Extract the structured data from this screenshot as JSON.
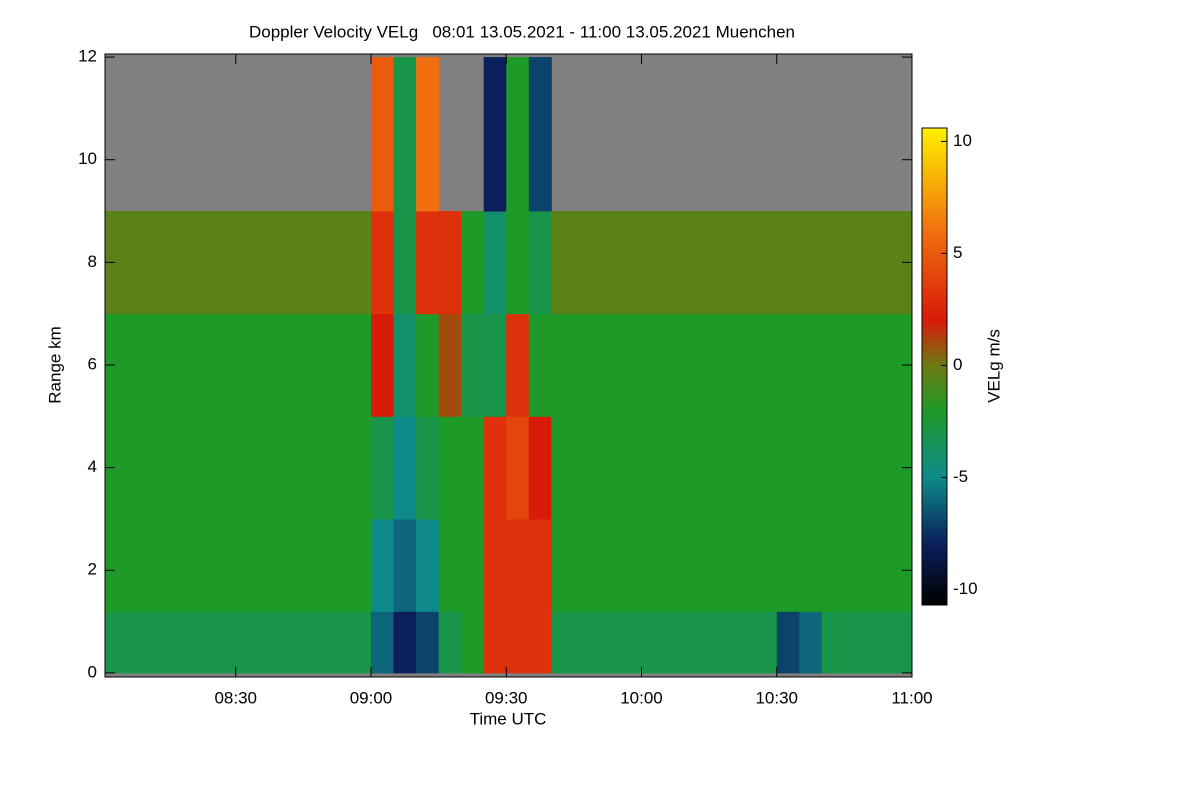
{
  "chart_data": {
    "type": "heatmap",
    "title": "Doppler Velocity VELg   08:01 13.05.2021 - 11:00 13.05.2021 Muenchen",
    "xlabel": "Time UTC",
    "ylabel": "Range km",
    "colorbar_label": "VELg m/s",
    "xlim": [
      481,
      660
    ],
    "ylim": [
      -0.08,
      12.06
    ],
    "xticks": [
      {
        "value": 510,
        "label": "08:30"
      },
      {
        "value": 540,
        "label": "09:00"
      },
      {
        "value": 570,
        "label": "09:30"
      },
      {
        "value": 600,
        "label": "10:00"
      },
      {
        "value": 630,
        "label": "10:30"
      },
      {
        "value": 660,
        "label": "11:00"
      }
    ],
    "yticks": [
      0,
      2,
      4,
      6,
      8,
      10,
      12
    ],
    "x_edges": [
      481,
      485,
      490,
      495,
      500,
      505,
      510,
      515,
      520,
      525,
      530,
      535,
      540,
      545,
      550,
      555,
      560,
      565,
      570,
      575,
      580,
      585,
      590,
      595,
      600,
      605,
      610,
      615,
      620,
      625,
      630,
      635,
      640,
      645,
      650,
      655,
      660
    ],
    "y_edges": [
      0,
      1.2,
      3,
      5,
      7,
      9,
      12
    ],
    "z": [
      [
        -3,
        -3,
        -3,
        -3,
        -3,
        -3,
        -3,
        -3,
        -3,
        -3,
        -3,
        -3,
        -6,
        -8,
        -7,
        -3,
        -2,
        3,
        3,
        3,
        -3,
        -3,
        -3,
        -3,
        -3,
        -3,
        -3,
        -3,
        -3,
        -3,
        -7,
        -6,
        -3,
        -3,
        -3,
        -3
      ],
      [
        -2,
        -2,
        -2,
        -2,
        -2,
        -2,
        -2,
        -2,
        -2,
        -2,
        -2,
        -2,
        -5,
        -6,
        -5,
        -2,
        -2,
        3,
        3,
        3,
        -2,
        -2,
        -2,
        -2,
        -2,
        -2,
        -2,
        -2,
        -2,
        -2,
        -2,
        -2,
        -2,
        -2,
        -2,
        -2
      ],
      [
        -2,
        -2,
        -2,
        -2,
        -2,
        -2,
        -2,
        -2,
        -2,
        -2,
        -2,
        -2,
        -3,
        -5,
        -3,
        -2,
        -2,
        3,
        4,
        2,
        -2,
        -2,
        -2,
        -2,
        -2,
        -2,
        -2,
        -2,
        -2,
        -2,
        -2,
        -2,
        -2,
        -2,
        -2,
        -2
      ],
      [
        -2,
        -2,
        -2,
        -2,
        -2,
        -2,
        -2,
        -2,
        -2,
        -2,
        -2,
        -2,
        2,
        -4,
        -2,
        1,
        -3,
        -3,
        3,
        -2,
        -2,
        -2,
        -2,
        -2,
        -2,
        -2,
        -2,
        -2,
        -2,
        -2,
        -2,
        -2,
        -2,
        -2,
        -2,
        -2
      ],
      [
        -0.5,
        -0.5,
        -0.5,
        -0.5,
        -0.5,
        -0.5,
        -0.5,
        -0.5,
        -0.5,
        -0.5,
        -0.5,
        -0.5,
        3,
        -3,
        3,
        3,
        -2,
        -4,
        -2,
        -3,
        -0.5,
        -0.5,
        -0.5,
        -0.5,
        -0.5,
        -0.5,
        -0.5,
        -0.5,
        -0.5,
        -0.5,
        -0.5,
        -0.5,
        -0.5,
        -0.5,
        -0.5,
        -0.5
      ],
      [
        null,
        null,
        null,
        null,
        null,
        null,
        null,
        null,
        null,
        null,
        null,
        null,
        5,
        -3,
        6,
        null,
        null,
        -8,
        -2,
        -7,
        null,
        null,
        null,
        null,
        null,
        null,
        null,
        null,
        null,
        null,
        null,
        null,
        null,
        null,
        null,
        null
      ]
    ],
    "clim": [
      -10.7,
      10.6
    ],
    "cticks": [
      -10,
      -5,
      0,
      5,
      10
    ],
    "colormap": [
      "#000000",
      "#0a1f5c",
      "#0e8a8a",
      "#1e9a28",
      "#6e7a12",
      "#d81a08",
      "#f07010",
      "#fff000"
    ],
    "colormap_stops": [
      -10.7,
      -8,
      -5,
      -2,
      0,
      2,
      6,
      10.6
    ],
    "nodata_color": "#808080"
  }
}
